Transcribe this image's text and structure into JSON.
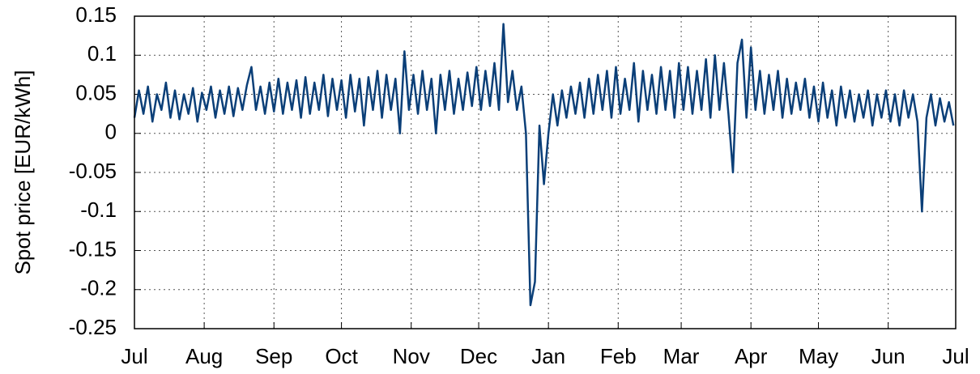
{
  "chart_data": {
    "type": "line",
    "y_label": "Spot price [EUR/kWh]",
    "xlim": [
      0,
      365
    ],
    "xticks": [
      {
        "value": 0,
        "label": "Jul"
      },
      {
        "value": 31,
        "label": "Aug"
      },
      {
        "value": 62,
        "label": "Sep"
      },
      {
        "value": 92,
        "label": "Oct"
      },
      {
        "value": 123,
        "label": "Nov"
      },
      {
        "value": 153,
        "label": "Dec"
      },
      {
        "value": 184,
        "label": "Jan"
      },
      {
        "value": 215,
        "label": "Feb"
      },
      {
        "value": 243,
        "label": "Mar"
      },
      {
        "value": 274,
        "label": "Apr"
      },
      {
        "value": 304,
        "label": "May"
      },
      {
        "value": 335,
        "label": "Jun"
      },
      {
        "value": 365,
        "label": "Jul"
      }
    ],
    "ylim": [
      -0.25,
      0.15
    ],
    "yticks": [
      0.15,
      0.1,
      0.05,
      0,
      -0.05,
      -0.1,
      -0.15,
      -0.2,
      -0.25
    ],
    "grid": true,
    "x": [
      0,
      2,
      4,
      6,
      8,
      10,
      12,
      14,
      16,
      18,
      20,
      22,
      24,
      26,
      28,
      30,
      32,
      34,
      36,
      38,
      40,
      42,
      44,
      46,
      48,
      50,
      52,
      54,
      56,
      58,
      60,
      62,
      64,
      66,
      68,
      70,
      72,
      74,
      76,
      78,
      80,
      82,
      84,
      86,
      88,
      90,
      92,
      94,
      96,
      98,
      100,
      102,
      104,
      106,
      108,
      110,
      112,
      114,
      116,
      118,
      120,
      122,
      124,
      126,
      128,
      130,
      132,
      134,
      136,
      138,
      140,
      142,
      144,
      146,
      148,
      150,
      152,
      154,
      156,
      158,
      160,
      162,
      164,
      166,
      168,
      170,
      172,
      174,
      176,
      178,
      180,
      182,
      184,
      186,
      188,
      190,
      192,
      194,
      196,
      198,
      200,
      202,
      204,
      206,
      208,
      210,
      212,
      214,
      216,
      218,
      220,
      222,
      224,
      226,
      228,
      230,
      232,
      234,
      236,
      238,
      240,
      242,
      244,
      246,
      248,
      250,
      252,
      254,
      256,
      258,
      260,
      262,
      264,
      266,
      268,
      270,
      272,
      274,
      276,
      278,
      280,
      282,
      284,
      286,
      288,
      290,
      292,
      294,
      296,
      298,
      300,
      302,
      304,
      306,
      308,
      310,
      312,
      314,
      316,
      318,
      320,
      322,
      324,
      326,
      328,
      330,
      332,
      334,
      336,
      338,
      340,
      342,
      344,
      346,
      348,
      350,
      352,
      354,
      356,
      358,
      360,
      362,
      364
    ],
    "series": [
      {
        "color": "#0b3f78",
        "values": [
          0.02,
          0.055,
          0.025,
          0.06,
          0.015,
          0.05,
          0.03,
          0.065,
          0.02,
          0.055,
          0.018,
          0.05,
          0.025,
          0.058,
          0.015,
          0.052,
          0.03,
          0.06,
          0.02,
          0.055,
          0.025,
          0.06,
          0.022,
          0.058,
          0.03,
          0.062,
          0.085,
          0.03,
          0.06,
          0.025,
          0.065,
          0.028,
          0.07,
          0.025,
          0.065,
          0.03,
          0.068,
          0.02,
          0.072,
          0.025,
          0.065,
          0.03,
          0.075,
          0.022,
          0.07,
          0.03,
          0.068,
          0.02,
          0.075,
          0.028,
          0.07,
          0.01,
          0.072,
          0.03,
          0.08,
          0.02,
          0.075,
          0.03,
          0.07,
          0.0,
          0.105,
          0.03,
          0.075,
          0.025,
          0.08,
          0.03,
          0.07,
          0.0,
          0.075,
          0.03,
          0.08,
          0.025,
          0.07,
          0.03,
          0.078,
          0.035,
          0.085,
          0.03,
          0.08,
          0.035,
          0.09,
          0.03,
          0.14,
          0.04,
          0.08,
          0.03,
          0.06,
          0.0,
          -0.22,
          -0.19,
          0.01,
          -0.065,
          0.0,
          0.05,
          0.01,
          0.055,
          0.02,
          0.06,
          0.025,
          0.065,
          0.02,
          0.07,
          0.025,
          0.075,
          0.03,
          0.08,
          0.02,
          0.085,
          0.025,
          0.07,
          0.03,
          0.09,
          0.015,
          0.08,
          0.03,
          0.075,
          0.025,
          0.085,
          0.03,
          0.08,
          0.02,
          0.09,
          0.03,
          0.085,
          0.025,
          0.08,
          0.03,
          0.095,
          0.02,
          0.1,
          0.03,
          0.09,
          0.025,
          -0.05,
          0.09,
          0.12,
          0.02,
          0.11,
          0.03,
          0.08,
          0.025,
          0.075,
          0.03,
          0.08,
          0.02,
          0.07,
          0.025,
          0.065,
          0.03,
          0.07,
          0.02,
          0.06,
          0.015,
          0.065,
          0.02,
          0.055,
          0.01,
          0.06,
          0.02,
          0.055,
          0.015,
          0.05,
          0.02,
          0.055,
          0.01,
          0.05,
          0.02,
          0.055,
          0.015,
          0.05,
          0.01,
          0.055,
          0.02,
          0.05,
          0.015,
          -0.1,
          0.02,
          0.05,
          0.01,
          0.045,
          0.015,
          0.04,
          0.01
        ]
      }
    ]
  }
}
